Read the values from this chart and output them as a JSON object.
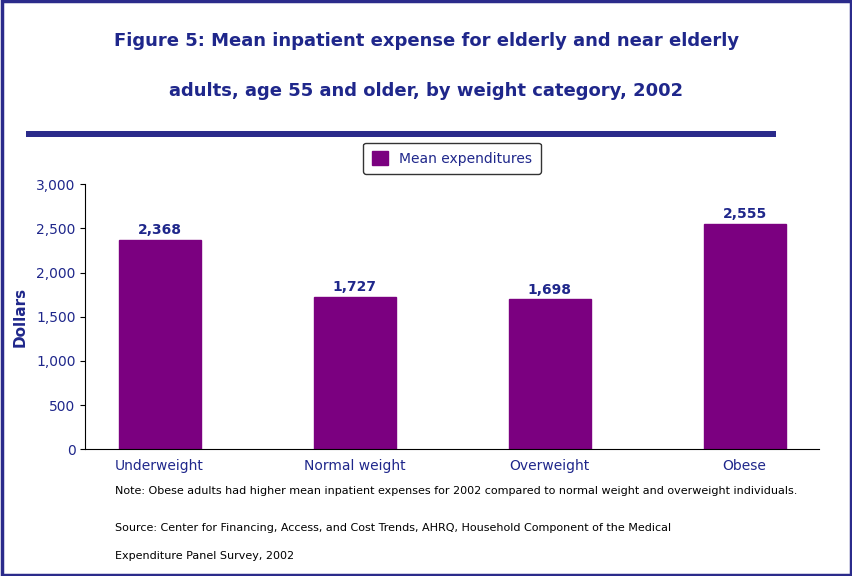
{
  "title_line1": "Figure 5: Mean inpatient expense for elderly and near elderly",
  "title_line2": "adults, age 55 and older, by weight category, 2002",
  "categories": [
    "Underweight",
    "Normal weight",
    "Overweight",
    "Obese"
  ],
  "values": [
    2368,
    1727,
    1698,
    2555
  ],
  "bar_color": "#7B0080",
  "ylabel": "Dollars",
  "ylim": [
    0,
    3000
  ],
  "yticks": [
    0,
    500,
    1000,
    1500,
    2000,
    2500,
    3000
  ],
  "legend_label": "Mean expenditures",
  "note_text": "Note: Obese adults had higher mean inpatient expenses for 2002 compared to normal weight and overweight individuals.",
  "source_line1": "Source: Center for Financing, Access, and Cost Trends, AHRQ, Household Component of the Medical",
  "source_line2": "Expenditure Panel Survey, 2002",
  "title_color": "#1F278B",
  "axis_label_color": "#1F278B",
  "tick_label_color": "#1F278B",
  "bar_label_color": "#1F278B",
  "value_labels": [
    "2,368",
    "1,727",
    "1,698",
    "2,555"
  ],
  "background_color": "#FFFFFF",
  "border_color": "#2B2B8B",
  "divider_color": "#2B2B8B",
  "footer_text_color": "#000000",
  "title_fontsize": 13,
  "bar_label_fontsize": 10,
  "tick_fontsize": 10,
  "ylabel_fontsize": 11,
  "legend_fontsize": 10,
  "note_fontsize": 8,
  "source_fontsize": 8
}
